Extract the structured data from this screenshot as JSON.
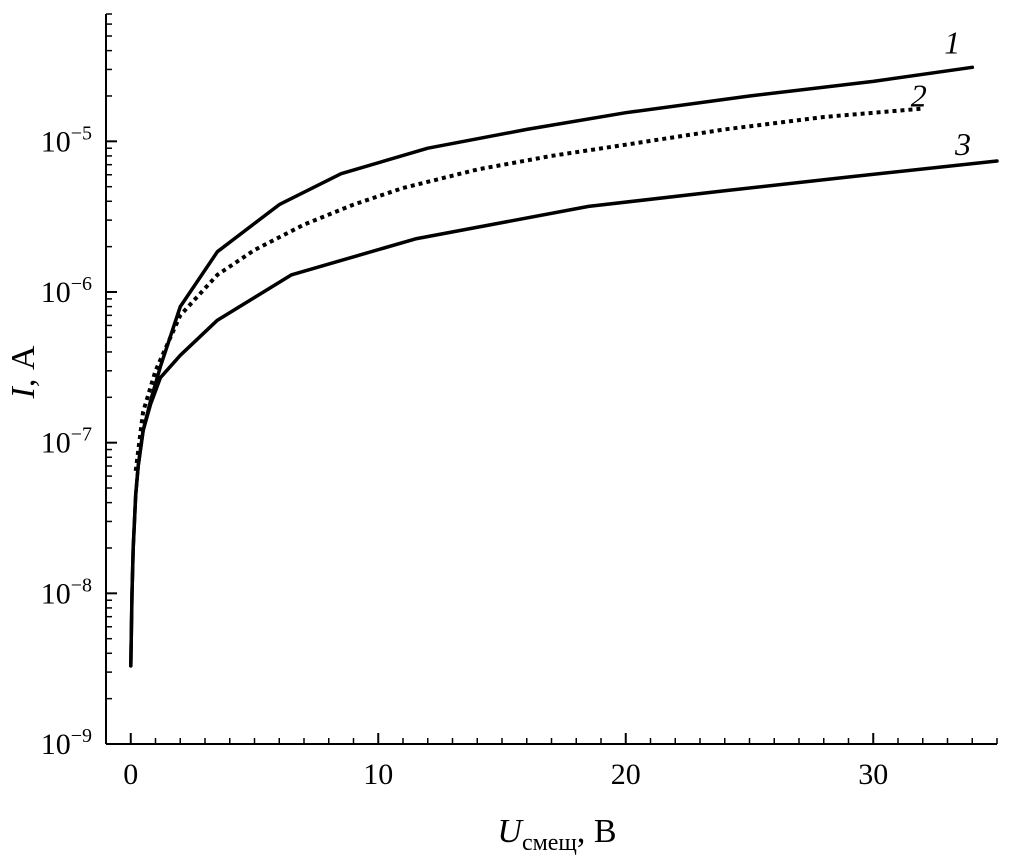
{
  "chart_data": {
    "type": "line",
    "xlabel": {
      "main": "U",
      "subscript": "смещ",
      "unit": ", В"
    },
    "ylabel": {
      "main": "I",
      "unit": ", А"
    },
    "xlim": [
      -1,
      35
    ],
    "ylim": [
      1e-09,
      7e-05
    ],
    "yscale": "log",
    "grid": false,
    "x_ticks": [
      0,
      10,
      20,
      30
    ],
    "x_tick_labels": [
      "0",
      "10",
      "20",
      "30"
    ],
    "y_ticks": [
      1e-09,
      1e-08,
      1e-07,
      1e-06,
      1e-05
    ],
    "y_tick_labels": [
      {
        "base": "10",
        "exp": "−9"
      },
      {
        "base": "10",
        "exp": "−8"
      },
      {
        "base": "10",
        "exp": "−7"
      },
      {
        "base": "10",
        "exp": "−6"
      },
      {
        "base": "10",
        "exp": "−5"
      }
    ],
    "series": [
      {
        "name": "1",
        "style": "solid",
        "color": "#000000",
        "x": [
          0.0,
          0.05,
          0.1,
          0.2,
          0.3,
          0.5,
          0.8,
          1.2,
          2.0,
          3.5,
          6.0,
          8.5,
          12,
          16,
          20,
          25,
          30,
          34
        ],
        "y": [
          3.3e-09,
          1e-08,
          2e-08,
          4.5e-08,
          7e-08,
          1.2e-07,
          1.9e-07,
          3.2e-07,
          8e-07,
          1.85e-06,
          3.8e-06,
          6.1e-06,
          9e-06,
          1.2e-05,
          1.55e-05,
          2e-05,
          2.5e-05,
          3.1e-05
        ]
      },
      {
        "name": "2",
        "style": "dotted",
        "color": "#000000",
        "x": [
          0.2,
          0.5,
          1.0,
          2.0,
          3.5,
          5,
          7,
          9,
          11,
          14,
          17,
          20,
          24,
          28,
          32
        ],
        "y": [
          6.5e-08,
          1.6e-07,
          3e-07,
          7e-07,
          1.3e-06,
          1.9e-06,
          2.8e-06,
          3.8e-06,
          4.9e-06,
          6.5e-06,
          8e-06,
          9.5e-06,
          1.2e-05,
          1.45e-05,
          1.65e-05
        ]
      },
      {
        "name": "3",
        "style": "solid",
        "color": "#000000",
        "x": [
          0.0,
          0.05,
          0.1,
          0.2,
          0.3,
          0.5,
          0.8,
          1.2,
          2.0,
          3.5,
          6.5,
          11.5,
          18.5,
          24,
          29,
          35
        ],
        "y": [
          3.3e-09,
          1e-08,
          2e-08,
          4.5e-08,
          7e-08,
          1.2e-07,
          1.8e-07,
          2.7e-07,
          3.8e-07,
          6.5e-07,
          1.3e-06,
          2.25e-06,
          3.7e-06,
          4.7e-06,
          5.8e-06,
          7.4e-06
        ]
      }
    ]
  }
}
